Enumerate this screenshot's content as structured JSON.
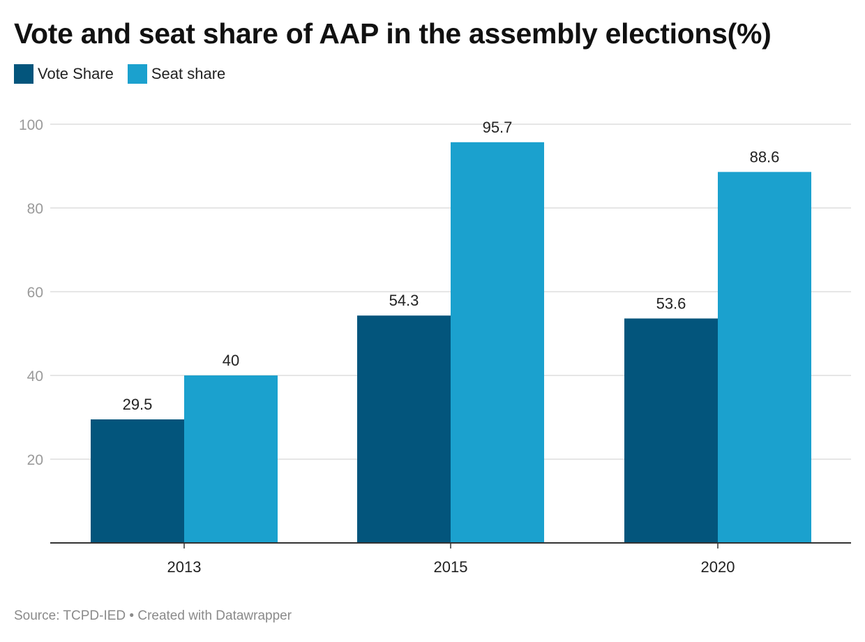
{
  "title": "Vote and seat share of AAP in the assembly elections(%)",
  "source_text": "Source: TCPD-IED • Created with Datawrapper",
  "colors": {
    "vote": "#03557c",
    "seat": "#1ba1ce",
    "grid": "#dddddd",
    "axis": "#333333",
    "tick_text": "#9a9a9a"
  },
  "chart_data": {
    "type": "bar",
    "title": "Vote and seat share of AAP in the assembly elections(%)",
    "xlabel": "",
    "ylabel": "",
    "categories": [
      "2013",
      "2015",
      "2020"
    ],
    "series": [
      {
        "name": "Vote Share",
        "values": [
          29.5,
          54.3,
          53.6
        ],
        "labels": [
          "29.5",
          "54.3",
          "53.6"
        ]
      },
      {
        "name": "Seat share",
        "values": [
          40,
          95.7,
          88.6
        ],
        "labels": [
          "40",
          "95.7",
          "88.6"
        ]
      }
    ],
    "ylim": [
      0,
      100
    ],
    "yticks": [
      20,
      40,
      60,
      80,
      100
    ],
    "grid": true,
    "legend_position": "top-left"
  }
}
